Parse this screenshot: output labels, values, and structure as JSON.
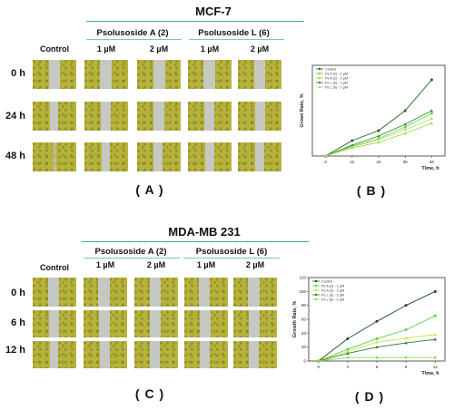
{
  "panelA": {
    "title": "MCF-7",
    "groups": [
      "Psolusoside A (2)",
      "Psolusoside L (6)"
    ],
    "columns": [
      "Control",
      "1 µM",
      "2 µM",
      "1 µM",
      "2 µM"
    ],
    "rows": [
      "0 h",
      "24 h",
      "48 h"
    ],
    "caption": "( A )"
  },
  "panelC": {
    "title": "MDA-MB 231",
    "groups": [
      "Psolusoside A (2)",
      "Psolusoside L (6)"
    ],
    "columns": [
      "Control",
      "1 µM",
      "2 µM",
      "1 µM",
      "2 µM"
    ],
    "rows": [
      "0 h",
      "6 h",
      "12 h"
    ],
    "caption": "( C )"
  },
  "panelB_caption": "( B )",
  "panelD_caption": "( D )",
  "chart_data": [
    {
      "type": "line",
      "x": [
        0,
        12,
        24,
        36,
        48
      ],
      "xlabel": "Time, h",
      "ylabel": "Growt Rate, %",
      "xlim": [
        -6,
        54
      ],
      "ylim": [
        0,
        100
      ],
      "grid": false,
      "legend": "top-left",
      "series": [
        {
          "name": "Control",
          "color": "#1f5e20",
          "values": [
            0,
            17,
            28,
            50,
            84
          ]
        },
        {
          "name": "Ps A (2) - 1 µM",
          "color": "#6fd24a",
          "values": [
            0,
            11,
            19,
            32,
            47
          ]
        },
        {
          "name": "Ps A (2) - 2 µM",
          "color": "#9bdc39",
          "values": [
            0,
            9,
            15,
            25,
            36
          ]
        },
        {
          "name": "Ps L (6) - 1 µM",
          "color": "#2e8b2e",
          "values": [
            0,
            12,
            22,
            35,
            50
          ]
        },
        {
          "name": "Ps L (6) - 2 µM",
          "color": "#a8e07a",
          "values": [
            0,
            10,
            18,
            29,
            41
          ]
        }
      ]
    },
    {
      "type": "line",
      "x": [
        0,
        3,
        6,
        9,
        12
      ],
      "xlabel": "Time, h",
      "ylabel": "Growth Rate, %",
      "xlim": [
        -1,
        13
      ],
      "ylim": [
        0,
        120
      ],
      "yticks": [
        0,
        20,
        40,
        60,
        80,
        100,
        120
      ],
      "xticks": [
        0,
        3,
        6,
        9,
        12
      ],
      "grid": false,
      "legend": "top-left",
      "series": [
        {
          "name": "Control",
          "color": "#1a4d1a",
          "values": [
            0,
            32,
            57,
            80,
            100
          ]
        },
        {
          "name": "Ps A (2) - 1 µM",
          "color": "#53d14a",
          "values": [
            0,
            17,
            32,
            45,
            65
          ]
        },
        {
          "name": "Ps A (2) - 2 µM",
          "color": "#c9e34a",
          "values": [
            0,
            14,
            27,
            33,
            38
          ]
        },
        {
          "name": "Ps L (6) - 1 µM",
          "color": "#2f7d2f",
          "values": [
            0,
            11,
            20,
            26,
            31
          ]
        },
        {
          "name": "Ps L (6) - 2 µM",
          "color": "#7fdc55",
          "values": [
            0,
            5,
            5,
            5,
            5
          ]
        }
      ]
    }
  ]
}
